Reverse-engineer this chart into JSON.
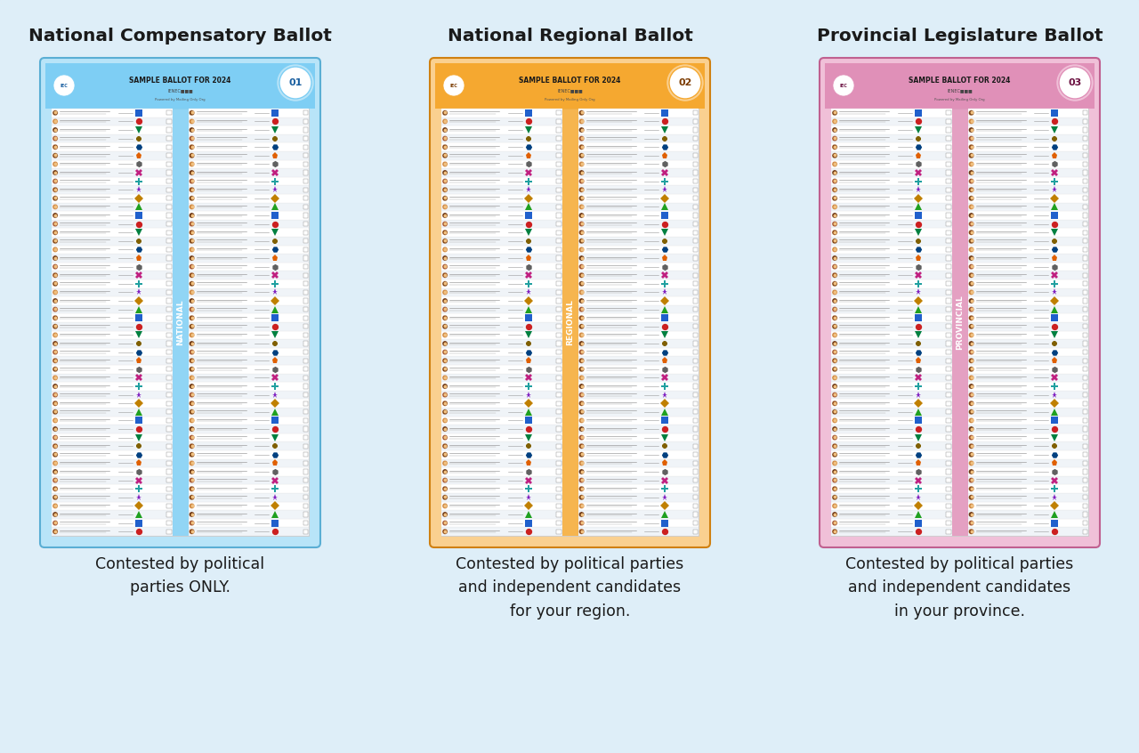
{
  "background_color": "#deeef8",
  "outer_border_color": "#90b8d0",
  "ballots": [
    {
      "title": "National Compensatory Ballot",
      "title_color": "#1a1a1a",
      "ballot_bg": "#7ecef4",
      "ballot_bg_light": "#b8e4f8",
      "ballot_border": "#5aaed4",
      "label_color": "#1a5fa0",
      "label_bg": "#5aaed4",
      "label_text": "NATIONAL",
      "header_text": "SAMPLE BALLOT FOR 2024",
      "description": "Contested by political\nparties ONLY.",
      "badge_color": "#7ecef4",
      "badge_text": "01"
    },
    {
      "title": "National Regional Ballot",
      "title_color": "#1a1a1a",
      "ballot_bg": "#f5a830",
      "ballot_bg_light": "#fad090",
      "ballot_border": "#d08010",
      "label_color": "#7a3a00",
      "label_bg": "#d08010",
      "label_text": "REGIONAL",
      "header_text": "SAMPLE BALLOT FOR 2024",
      "description": "Contested by political parties\nand independent candidates\nfor your region.",
      "badge_color": "#f5a830",
      "badge_text": "02"
    },
    {
      "title": "Provincial Legislature Ballot",
      "title_color": "#1a1a1a",
      "ballot_bg": "#e090b8",
      "ballot_bg_light": "#f0c0d8",
      "ballot_border": "#c06090",
      "label_color": "#6a1040",
      "label_bg": "#c06090",
      "label_text": "PROVINCIAL",
      "header_text": "SAMPLE BALLOT FOR 2024",
      "description": "Contested by political parties\nand independent candidates\nin your province.",
      "badge_color": "#e090b8",
      "badge_text": "03"
    }
  ],
  "num_rows": 50,
  "symbol_colors": [
    "#cc2020",
    "#2060cc",
    "#20a020",
    "#c08000",
    "#8020c0",
    "#20a0a0",
    "#c02080",
    "#606060",
    "#e06000",
    "#004080",
    "#806000",
    "#008040"
  ]
}
